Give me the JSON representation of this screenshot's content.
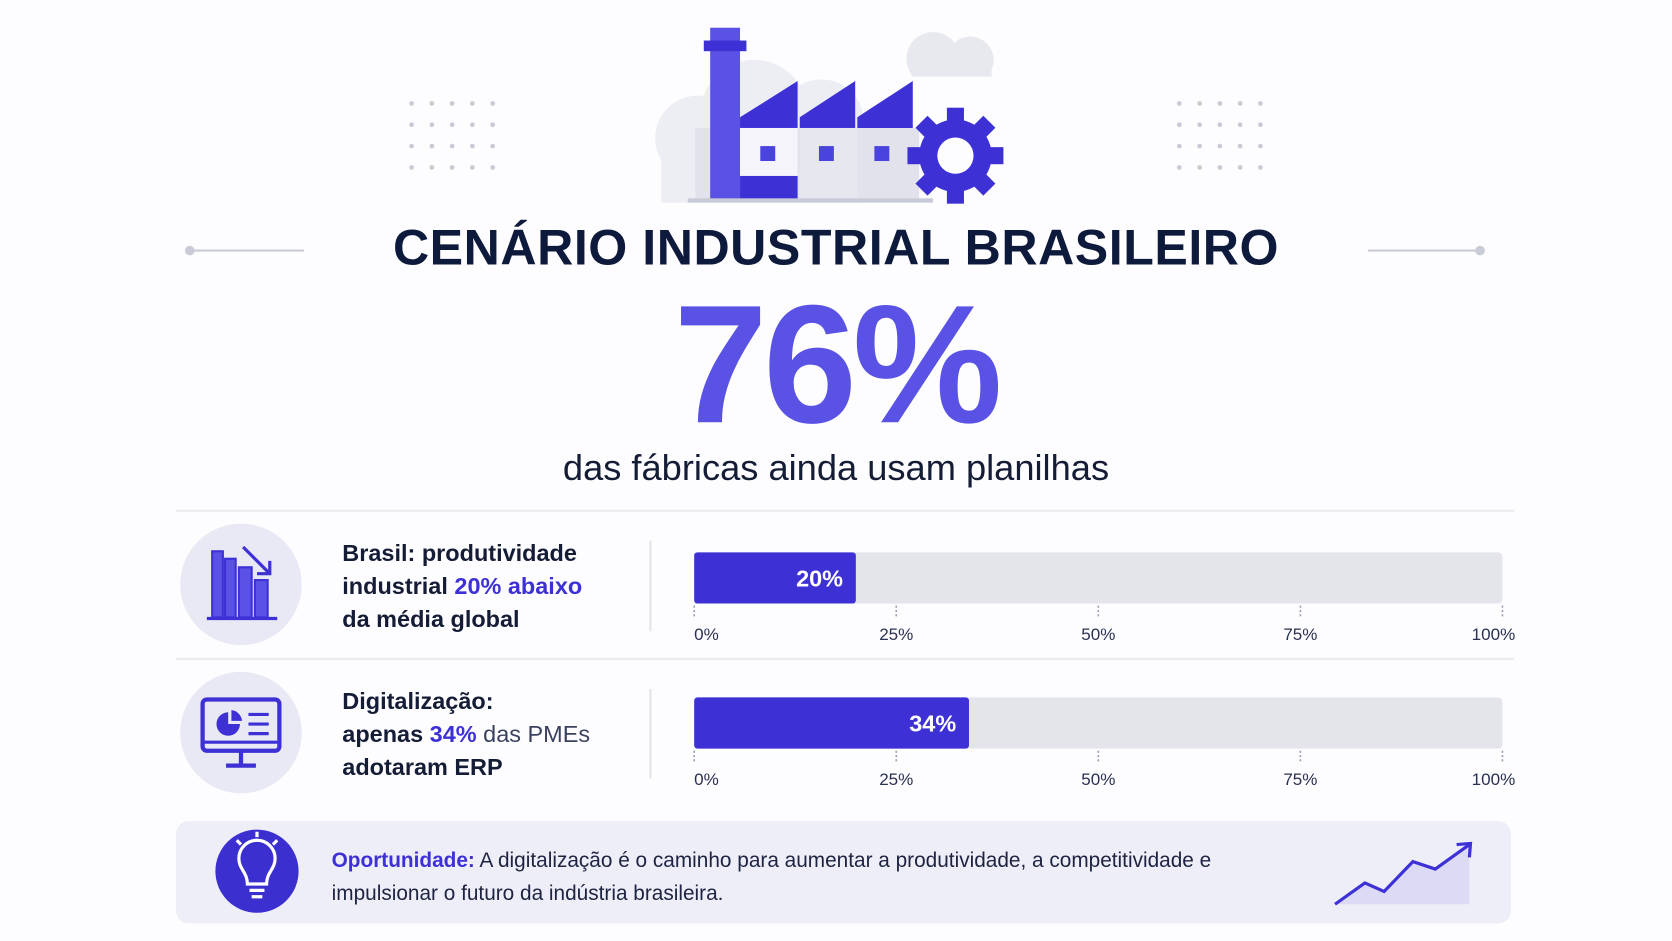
{
  "header": {
    "title": "CENÁRIO INDUSTRIAL BRASILEIRO",
    "big_stat": "76%",
    "big_stat_caption": "das fábricas ainda usam planilhas"
  },
  "chart_data": [
    {
      "type": "bar",
      "orientation": "horizontal",
      "description": [
        "Brasil: produtividade",
        "industrial",
        "20% abaixo",
        "da média global"
      ],
      "values": [
        20
      ],
      "value_labels": [
        "20%"
      ],
      "color": "#3d31d6",
      "track_color": "#e4e4eb",
      "xlim": [
        0,
        100
      ],
      "xticks": [
        {
          "value": 0,
          "label": "0%"
        },
        {
          "value": 25,
          "label": "25%"
        },
        {
          "value": 50,
          "label": "50%"
        },
        {
          "value": 75,
          "label": "75%"
        },
        {
          "value": 100,
          "label": "100%"
        }
      ]
    },
    {
      "type": "bar",
      "orientation": "horizontal",
      "description": [
        "Digitalização:",
        "apenas",
        "34%",
        "das PMEs",
        "adotaram ERP"
      ],
      "values": [
        34
      ],
      "value_labels": [
        "34%"
      ],
      "color": "#3d31d6",
      "track_color": "#e4e4eb",
      "xlim": [
        0,
        100
      ],
      "xticks": [
        {
          "value": 0,
          "label": "0%"
        },
        {
          "value": 25,
          "label": "25%"
        },
        {
          "value": 50,
          "label": "50%"
        },
        {
          "value": 75,
          "label": "75%"
        },
        {
          "value": 100,
          "label": "100%"
        }
      ]
    }
  ],
  "footer": {
    "label": "Oportunidade:",
    "text": "A digitalização é o caminho para aumentar a produtividade, a competitividade e impulsionar o futuro da indústria brasileira."
  }
}
